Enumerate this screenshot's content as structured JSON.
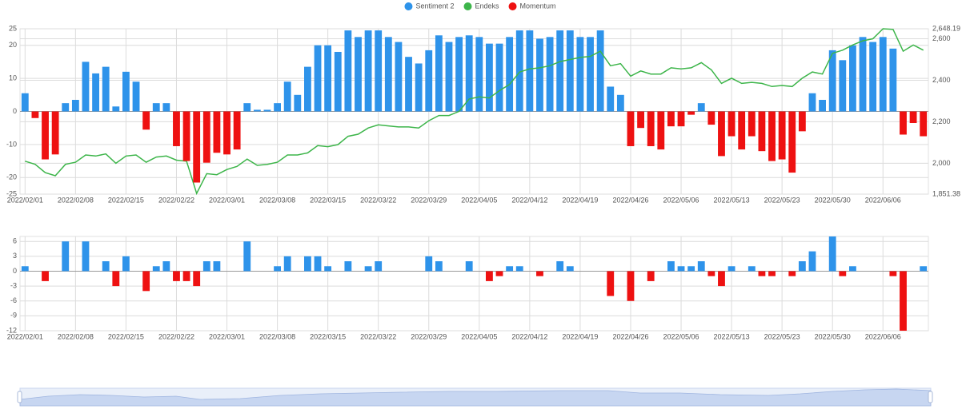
{
  "chart_data": [
    {
      "type": "bar",
      "categories": [
        "2022/02/01",
        null,
        null,
        null,
        null,
        "2022/02/08",
        null,
        null,
        null,
        null,
        "2022/02/15",
        null,
        null,
        null,
        null,
        "2022/02/22",
        null,
        null,
        null,
        null,
        "2022/03/01",
        null,
        null,
        null,
        null,
        "2022/03/08",
        null,
        null,
        null,
        null,
        "2022/03/15",
        null,
        null,
        null,
        null,
        "2022/03/22",
        null,
        null,
        null,
        null,
        "2022/03/29",
        null,
        null,
        null,
        null,
        "2022/04/05",
        null,
        null,
        null,
        null,
        "2022/04/12",
        null,
        null,
        null,
        null,
        "2022/04/19",
        null,
        null,
        null,
        null,
        "2022/04/26",
        null,
        null,
        null,
        null,
        "2022/05/06",
        null,
        null,
        null,
        null,
        "2022/05/13",
        null,
        null,
        null,
        null,
        "2022/05/23",
        null,
        null,
        null,
        null,
        "2022/05/30",
        null,
        null,
        null,
        null,
        "2022/06/06",
        null,
        null,
        null,
        null
      ],
      "series": [
        {
          "name": "Sentiment 2",
          "color": "#2e93ea",
          "values": [
            5.5,
            null,
            null,
            null,
            2.5,
            3.5,
            15,
            11.5,
            13.5,
            1.5,
            12,
            9,
            null,
            2.5,
            2.5,
            null,
            null,
            null,
            null,
            null,
            null,
            null,
            2.5,
            0.5,
            0.5,
            2.5,
            9,
            5,
            13.5,
            20,
            20,
            18,
            24.5,
            22.5,
            24.5,
            24.5,
            22.5,
            21,
            16.5,
            14.5,
            18.5,
            23,
            21,
            22.5,
            23,
            22.5,
            20.5,
            20.5,
            22.5,
            24.5,
            24.5,
            22,
            22.5,
            24.5,
            24.5,
            22.5,
            22.5,
            24.5,
            7.5,
            5,
            null,
            null,
            null,
            null,
            null,
            null,
            null,
            2.5,
            null,
            null,
            null,
            null,
            null,
            null,
            null,
            null,
            null,
            null,
            5.5,
            3.5,
            18.5,
            15.5,
            20,
            22.5,
            21,
            22.5,
            19,
            null,
            null,
            null
          ]
        },
        {
          "name": "Endeks",
          "color": "#3db54a",
          "type": "line",
          "axis": "y2",
          "values": [
            2010,
            1995,
            1955,
            1940,
            1995,
            2005,
            2040,
            2035,
            2045,
            2000,
            2035,
            2040,
            2005,
            2030,
            2035,
            2015,
            2010,
            1855,
            1950,
            1945,
            1970,
            1985,
            2020,
            1990,
            1995,
            2005,
            2040,
            2040,
            2050,
            2085,
            2080,
            2090,
            2130,
            2140,
            2170,
            2185,
            2180,
            2175,
            2175,
            2170,
            2205,
            2230,
            2230,
            2250,
            2310,
            2320,
            2315,
            2350,
            2380,
            2440,
            2455,
            2460,
            2470,
            2490,
            2500,
            2510,
            2515,
            2540,
            2470,
            2480,
            2420,
            2445,
            2430,
            2430,
            2460,
            2455,
            2460,
            2485,
            2450,
            2385,
            2410,
            2385,
            2390,
            2385,
            2370,
            2375,
            2370,
            2410,
            2440,
            2430,
            2530,
            2545,
            2570,
            2590,
            2600,
            2648,
            2645,
            2540,
            2570,
            2545
          ]
        },
        {
          "name": "Momentum",
          "color": "#ee1111",
          "values": [
            null,
            -2,
            -14.5,
            -13,
            null,
            null,
            null,
            null,
            null,
            null,
            null,
            null,
            -5.5,
            null,
            null,
            -10.5,
            -15,
            -21.5,
            -15.5,
            -12.5,
            -13,
            -11.5,
            null,
            null,
            null,
            null,
            null,
            null,
            null,
            null,
            null,
            null,
            null,
            null,
            null,
            null,
            null,
            null,
            null,
            null,
            null,
            null,
            null,
            null,
            null,
            null,
            null,
            null,
            null,
            null,
            null,
            null,
            null,
            null,
            null,
            null,
            null,
            null,
            null,
            null,
            -10.5,
            -5,
            -10.5,
            -11.5,
            -4.5,
            -4.5,
            -1,
            null,
            -4,
            -13.5,
            -7.5,
            -11.5,
            -7.5,
            -12,
            -15,
            -14.5,
            -18.5,
            -6,
            null,
            null,
            null,
            null,
            null,
            null,
            null,
            null,
            null,
            -7,
            -3.5,
            -7.5
          ]
        }
      ],
      "ylim": [
        -25,
        25
      ],
      "yticks": [
        -25,
        -20,
        -10,
        0,
        10,
        20,
        25
      ],
      "y2lim": [
        1851.38,
        2648.19
      ],
      "y2ticks": [
        {
          "value": 1851.38,
          "label": "1,851.38"
        },
        {
          "value": 2000,
          "label": "2,000"
        },
        {
          "value": 2200,
          "label": "2,200"
        },
        {
          "value": 2400,
          "label": "2,400"
        },
        {
          "value": 2600,
          "label": "2,600"
        },
        {
          "value": 2648.19,
          "label": "2,648.19"
        }
      ],
      "grid": true,
      "legend": "top"
    },
    {
      "type": "bar",
      "categories": [
        "2022/02/01",
        null,
        null,
        null,
        null,
        "2022/02/08",
        null,
        null,
        null,
        null,
        "2022/02/15",
        null,
        null,
        null,
        null,
        "2022/02/22",
        null,
        null,
        null,
        null,
        "2022/03/01",
        null,
        null,
        null,
        null,
        "2022/03/08",
        null,
        null,
        null,
        null,
        "2022/03/15",
        null,
        null,
        null,
        null,
        "2022/03/22",
        null,
        null,
        null,
        null,
        "2022/03/29",
        null,
        null,
        null,
        null,
        "2022/04/05",
        null,
        null,
        null,
        null,
        "2022/04/12",
        null,
        null,
        null,
        null,
        "2022/04/19",
        null,
        null,
        null,
        null,
        "2022/04/26",
        null,
        null,
        null,
        null,
        "2022/05/06",
        null,
        null,
        null,
        null,
        "2022/05/13",
        null,
        null,
        null,
        null,
        "2022/05/23",
        null,
        null,
        null,
        null,
        "2022/05/30",
        null,
        null,
        null,
        null,
        "2022/06/06",
        null,
        null,
        null,
        null
      ],
      "values": [
        1,
        0,
        -2,
        0,
        6,
        0,
        6,
        0,
        2,
        -3,
        3,
        0,
        -4,
        1,
        2,
        -2,
        -2,
        -3,
        2,
        2,
        0,
        0,
        6,
        0,
        0,
        1,
        3,
        0,
        3,
        3,
        1,
        0,
        2,
        0,
        1,
        2,
        0,
        0,
        0,
        0,
        3,
        2,
        0,
        0,
        2,
        0,
        -2,
        -1,
        1,
        1,
        0,
        -1,
        0,
        2,
        1,
        0,
        0,
        0,
        -5,
        0,
        -6,
        0,
        -2,
        0,
        2,
        1,
        1,
        2,
        -1,
        -3,
        1,
        0,
        1,
        -1,
        -1,
        0,
        -1,
        2,
        4,
        0,
        7,
        -1,
        1,
        0,
        0,
        0,
        -1,
        -12,
        0,
        1
      ],
      "color": "#2e93ea",
      "negative_color": "#ee1111",
      "ylim": [
        -12,
        7
      ],
      "yticks": [
        -12,
        -9,
        -6,
        -3,
        0,
        3,
        6
      ],
      "grid": true
    }
  ]
}
